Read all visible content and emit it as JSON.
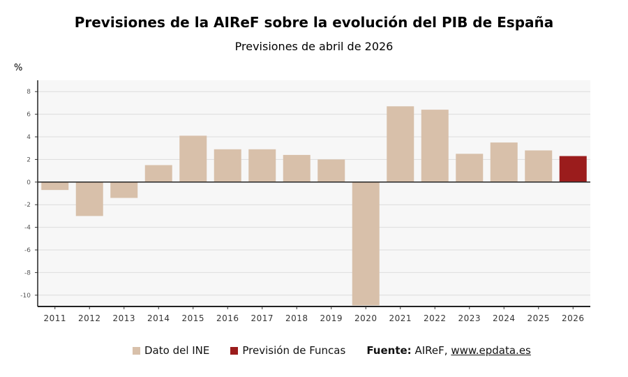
{
  "chart_data": {
    "type": "bar",
    "title": "Previsiones de la AIReF sobre la evolución del PIB de España",
    "subtitle": "Previsiones de abril de 2026",
    "ylabel": "%",
    "xlabel": "",
    "ylim": [
      -11,
      9
    ],
    "yticks": [
      8,
      6,
      4,
      2,
      0,
      -2,
      -4,
      -6,
      -8,
      -10
    ],
    "grid": true,
    "categories": [
      "2011",
      "2012",
      "2013",
      "2014",
      "2015",
      "2016",
      "2017",
      "2018",
      "2019",
      "2020",
      "2021",
      "2022",
      "2023",
      "2024",
      "2025",
      "2026"
    ],
    "values": [
      -0.7,
      -3.0,
      -1.4,
      1.5,
      4.1,
      2.9,
      2.9,
      2.4,
      2.0,
      -10.9,
      6.7,
      6.4,
      2.5,
      3.5,
      2.8,
      2.3
    ],
    "series_of_point": [
      "ine",
      "ine",
      "ine",
      "ine",
      "ine",
      "ine",
      "ine",
      "ine",
      "ine",
      "ine",
      "ine",
      "ine",
      "ine",
      "ine",
      "ine",
      "funcas"
    ],
    "legend": [
      {
        "key": "ine",
        "label": "Dato del INE",
        "color": "#d8c0aa"
      },
      {
        "key": "funcas",
        "label": "Previsión de Funcas",
        "color": "#9b1c1c"
      }
    ],
    "legend_position": "bottom",
    "source_label": "Fuente:",
    "source_text": "AIReF,",
    "source_link": "www.epdata.es"
  }
}
